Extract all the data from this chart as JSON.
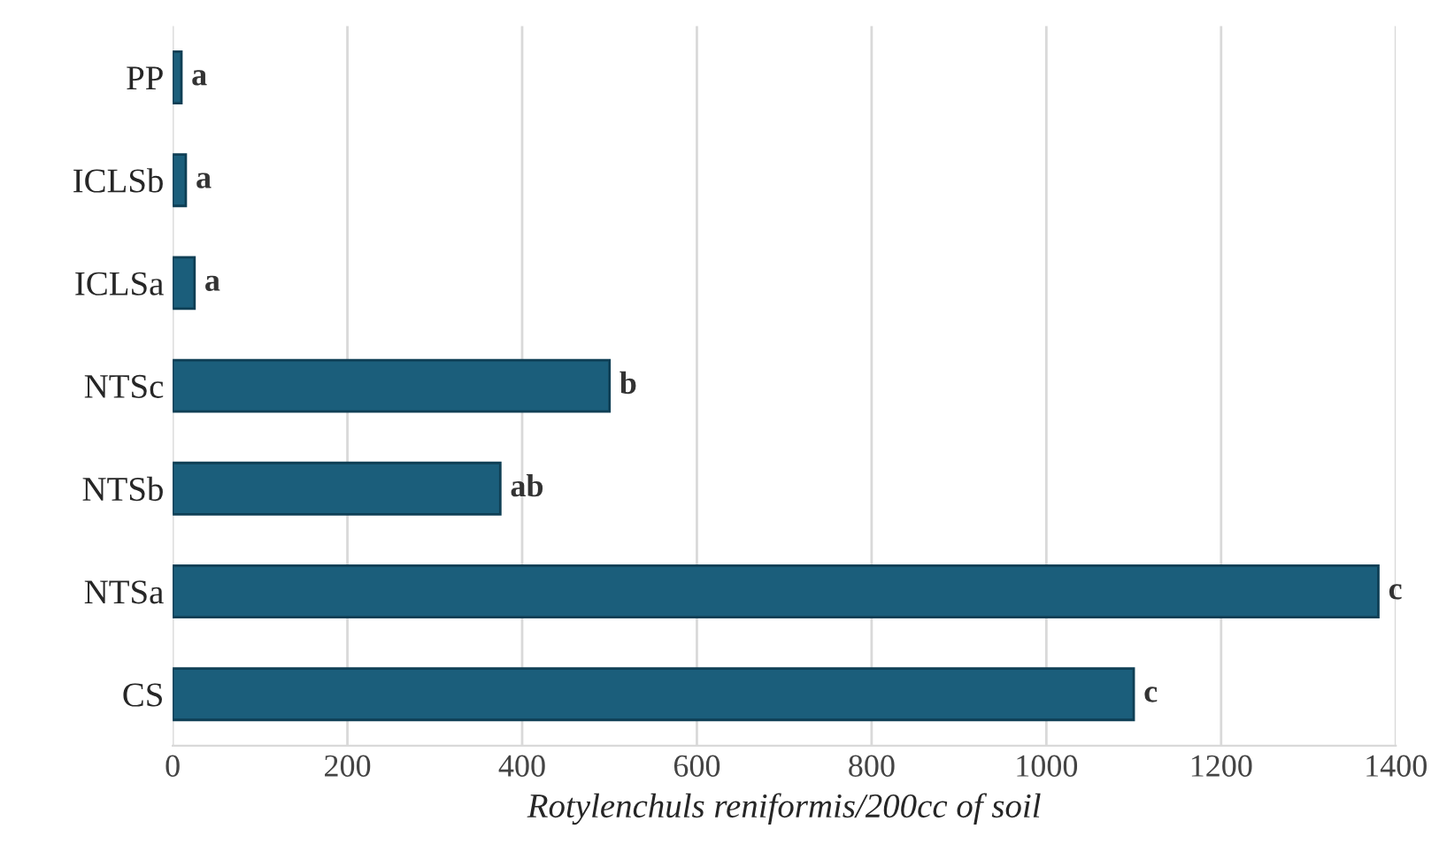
{
  "chart_data": {
    "type": "bar",
    "orientation": "horizontal",
    "xlabel": "Rotylenchuls reniformis/200cc of soil",
    "categories": [
      "PP",
      "ICLSb",
      "ICLSa",
      "NTSc",
      "NTSb",
      "NTSa",
      "CS"
    ],
    "values": [
      10,
      15,
      25,
      500,
      375,
      1380,
      1100
    ],
    "value_labels": [
      "a",
      "a",
      "a",
      "b",
      "ab",
      "c",
      "c"
    ],
    "color": "#1b5e7b",
    "xlim": [
      0,
      1400
    ],
    "xticks": [
      0,
      200,
      400,
      600,
      800,
      1000,
      1200,
      1400
    ],
    "grid": "x"
  }
}
